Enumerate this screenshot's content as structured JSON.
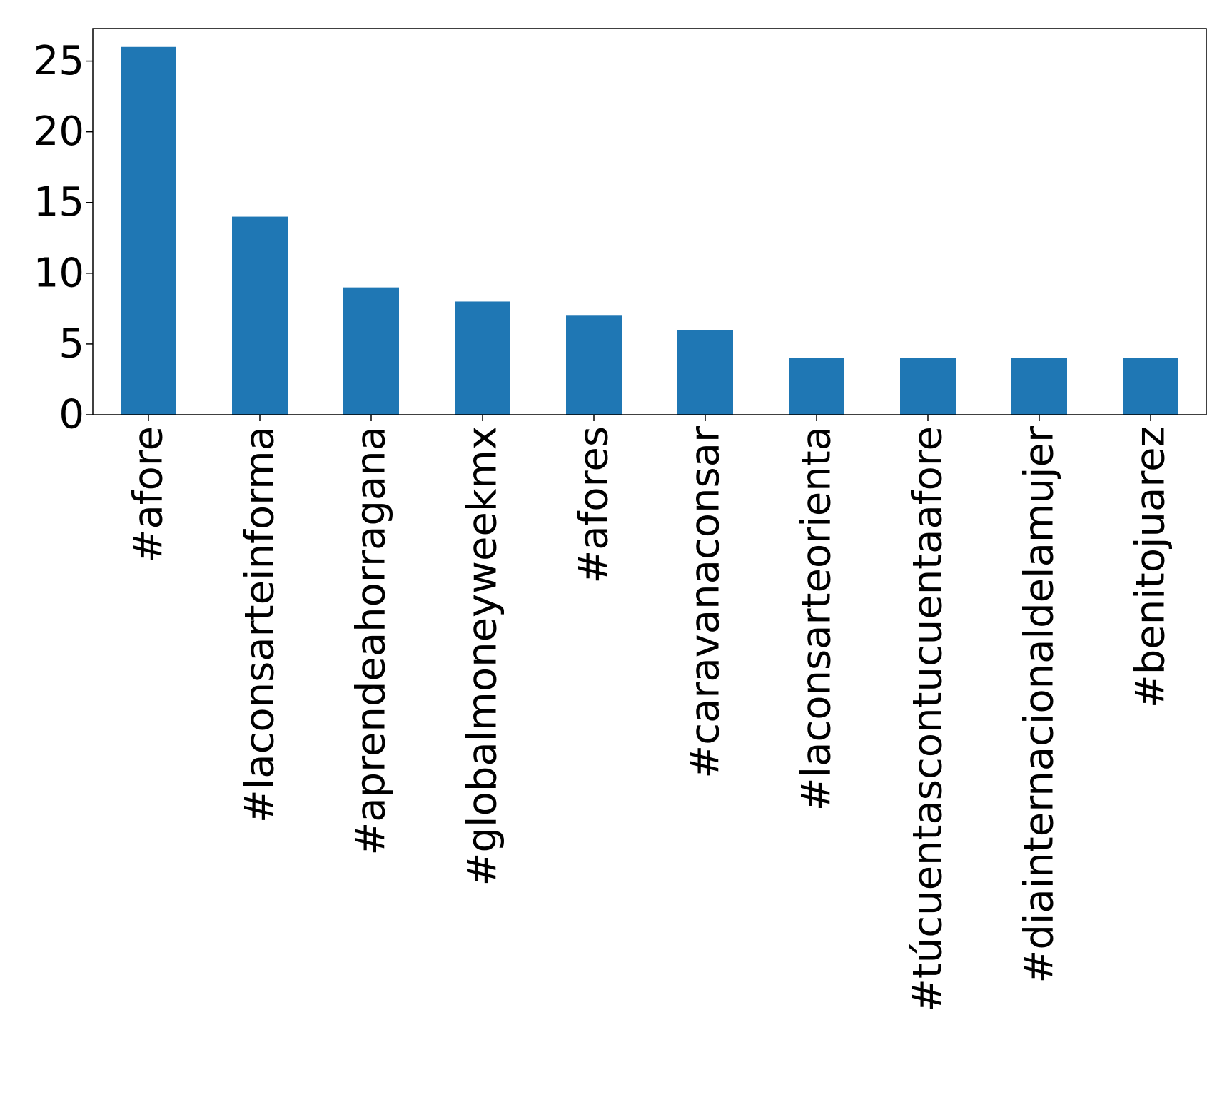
{
  "chart_data": {
    "type": "bar",
    "categories": [
      "#afore",
      "#laconsarteinforma",
      "#aprendeahorragana",
      "#globalmoneyweekmx",
      "#afores",
      "#caravanaconsar",
      "#laconsarteorienta",
      "#túcuentascontucuentaafore",
      "#diainternacionaldelamujer",
      "#benitojuarez"
    ],
    "values": [
      26,
      14,
      9,
      8,
      7,
      6,
      4,
      4,
      4,
      4
    ],
    "y_ticks": [
      0,
      5,
      10,
      15,
      20,
      25
    ],
    "ylim": [
      0,
      27.3
    ],
    "title": "",
    "xlabel": "",
    "ylabel": "",
    "grid": false,
    "legend": "none",
    "bar_color": "#1f77b4"
  }
}
